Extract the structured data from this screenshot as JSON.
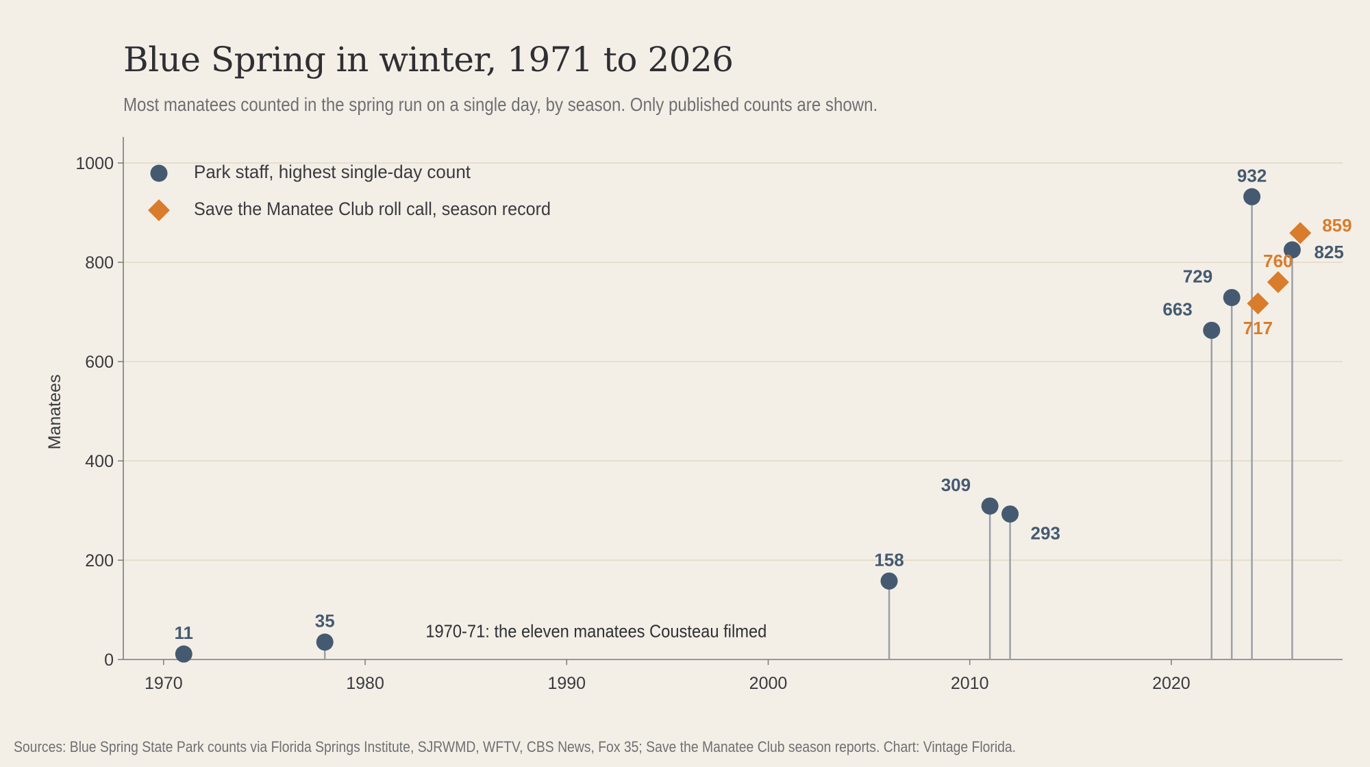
{
  "header": {
    "title": "Blue Spring in winter, 1971 to 2026",
    "subtitle": "Most manatees counted in the spring run on a single day, by season. Only published counts are shown."
  },
  "footer": {
    "source": "Sources: Blue Spring State Park counts via Florida Springs Institute, SJRWMD, WFTV, CBS News, Fox 35; Save the Manatee Club season reports. Chart: Vintage Florida."
  },
  "colors": {
    "background": "#f3efe7",
    "park_staff": "#455a70",
    "club": "#d97c2c",
    "stem": "#9aa0a8",
    "grid": "#e2d9c6",
    "axis": "#7a7a7c",
    "text": "#3a3a3e",
    "muted": "#6f6f72"
  },
  "chart_data": {
    "type": "scatter",
    "title": "Blue Spring in winter, 1971 to 2026",
    "subtitle": "Most manatees counted in the spring run on a single day, by season. Only published counts are shown.",
    "xlabel": "",
    "ylabel": "Manatees",
    "xlim": [
      1968,
      2028.5
    ],
    "ylim": [
      0,
      1050
    ],
    "x_ticks": [
      1970,
      1980,
      1990,
      2000,
      2010,
      2020
    ],
    "y_ticks": [
      0,
      200,
      400,
      600,
      800,
      1000
    ],
    "grid": "horizontal",
    "legend_position": "top-left",
    "series": [
      {
        "name": "Park staff, highest single-day count",
        "marker": "circle",
        "stems": true,
        "points": [
          {
            "x": 1971,
            "y": 11,
            "label": "11",
            "label_pos": "above"
          },
          {
            "x": 1978,
            "y": 35,
            "label": "35",
            "label_pos": "above"
          },
          {
            "x": 2006,
            "y": 158,
            "label": "158",
            "label_pos": "above"
          },
          {
            "x": 2011,
            "y": 309,
            "label": "309",
            "label_pos": "upper-left"
          },
          {
            "x": 2012,
            "y": 293,
            "label": "293",
            "label_pos": "lower-right"
          },
          {
            "x": 2022,
            "y": 663,
            "label": "663",
            "label_pos": "upper-left"
          },
          {
            "x": 2023,
            "y": 729,
            "label": "729",
            "label_pos": "upper-left"
          },
          {
            "x": 2024,
            "y": 932,
            "label": "932",
            "label_pos": "above"
          },
          {
            "x": 2026,
            "y": 825,
            "label": "825",
            "label_pos": "right"
          }
        ]
      },
      {
        "name": "Save the Manatee Club roll call, season record",
        "marker": "diamond",
        "stems": false,
        "points": [
          {
            "x": 2024.3,
            "y": 717,
            "label": "717",
            "label_pos": "below"
          },
          {
            "x": 2025.3,
            "y": 760,
            "label": "760",
            "label_pos": "above"
          },
          {
            "x": 2026.4,
            "y": 859,
            "label": "859",
            "label_pos": "right"
          }
        ]
      }
    ],
    "annotations": [
      {
        "x": 1983,
        "y": 45,
        "text": "1970-71: the eleven manatees Cousteau filmed"
      }
    ]
  }
}
